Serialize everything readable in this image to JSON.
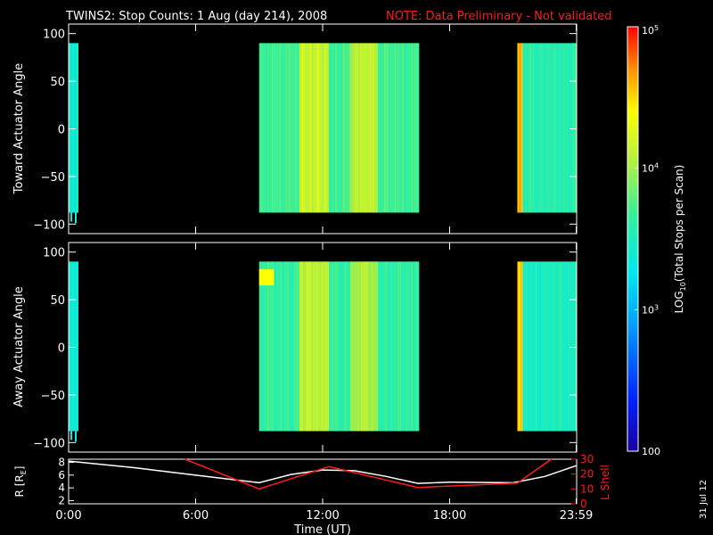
{
  "title": {
    "main": "TWINS2: Stop Counts:  1 Aug (day 214), 2008",
    "note": "NOTE: Data Preliminary - Not validated"
  },
  "stamp": "31 Jul 12",
  "colors": {
    "background": "#000000",
    "axis": "#ffffff",
    "note": "#ff1a1a",
    "lshell": "#ff1a1a",
    "radius": "#ffffff"
  },
  "chart_data": [
    {
      "type": "heatmap",
      "ylabel": "Toward Actuator Angle",
      "ylim": [
        -110,
        110
      ],
      "yticks": [
        100,
        50,
        0,
        -50,
        -100
      ],
      "xlim": [
        0,
        24
      ],
      "xticks": [
        0,
        6,
        12,
        18,
        23.98
      ],
      "yrange_data": [
        -88,
        90
      ],
      "blocks": [
        {
          "t0": 0.0,
          "t1": 0.45,
          "level": 0.47,
          "lowTail": true
        },
        {
          "t0": 9.0,
          "t1": 16.55,
          "level": 0.57
        },
        {
          "t0": 21.2,
          "t1": 24.0,
          "level": 0.53
        }
      ],
      "bands": [
        {
          "t0": 10.9,
          "t1": 12.3,
          "level": 0.72
        },
        {
          "t0": 13.3,
          "t1": 14.6,
          "level": 0.7
        },
        {
          "t0": 21.2,
          "t1": 21.45,
          "level": 0.85
        }
      ]
    },
    {
      "type": "heatmap",
      "ylabel": "Away Actuator Angle",
      "ylim": [
        -110,
        110
      ],
      "yticks": [
        100,
        50,
        0,
        -50,
        -100
      ],
      "xlim": [
        0,
        24
      ],
      "xticks": [
        0,
        6,
        12,
        18,
        23.98
      ],
      "yrange_data": [
        -88,
        90
      ],
      "blocks": [
        {
          "t0": 0.0,
          "t1": 0.45,
          "level": 0.45,
          "lowTail": true
        },
        {
          "t0": 9.0,
          "t1": 16.55,
          "level": 0.55
        },
        {
          "t0": 21.2,
          "t1": 24.0,
          "level": 0.5
        }
      ],
      "bands": [
        {
          "t0": 10.9,
          "t1": 12.3,
          "level": 0.7
        },
        {
          "t0": 13.3,
          "t1": 14.6,
          "level": 0.68
        },
        {
          "t0": 21.2,
          "t1": 21.45,
          "level": 0.85
        }
      ],
      "hotspot": {
        "t0": 9.0,
        "t1": 9.7,
        "a0": 65,
        "a1": 82,
        "level": 0.8
      }
    },
    {
      "type": "line",
      "ylabel": "R [RE]",
      "ylabel_main": "R [R",
      "ylabel_sub": "E",
      "ylabel_end": "]",
      "ylim": [
        1.5,
        8.5
      ],
      "yticks": [
        2,
        4,
        6,
        8
      ],
      "y2label": "L Shell",
      "y2lim": [
        0,
        30
      ],
      "y2ticks": [
        0,
        10,
        20,
        30
      ],
      "xlabel": "Time (UT)",
      "xticklabels": [
        "0:00",
        "6:00",
        "12:00",
        "18:00",
        "23:59"
      ],
      "xticks": [
        0,
        6,
        12,
        18,
        23.98
      ],
      "xlim": [
        0,
        24
      ],
      "series": [
        {
          "axis": "left",
          "x": [
            0,
            3,
            6,
            9,
            10.5,
            12,
            13.5,
            15,
            16.5,
            18,
            21,
            22.5,
            24
          ],
          "y": [
            8.2,
            7.2,
            6.0,
            4.8,
            6.1,
            6.8,
            6.7,
            5.8,
            4.7,
            4.9,
            4.8,
            5.8,
            7.5
          ]
        },
        {
          "axis": "right",
          "x": [
            5.5,
            9.0,
            12.3,
            16.5,
            21.2,
            22.8
          ],
          "y": [
            30,
            10,
            25,
            11,
            14,
            30
          ]
        }
      ]
    }
  ],
  "colorbar": {
    "label_pre": "LOG",
    "label_sub": "10",
    "label_post": "(Total Stops per Scan)",
    "ticks": [
      {
        "label": "100",
        "level": 0
      },
      {
        "label": "10",
        "exp": "3",
        "level": 0.333
      },
      {
        "label": "10",
        "exp": "4",
        "level": 0.667
      },
      {
        "label": "10",
        "exp": "5",
        "level": 1.0
      }
    ]
  }
}
